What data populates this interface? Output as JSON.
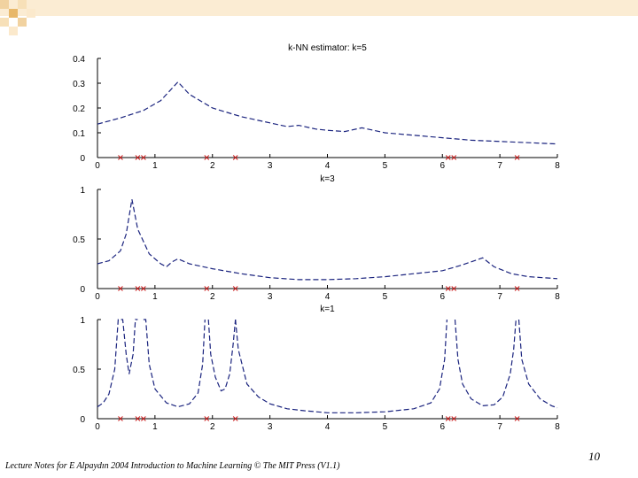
{
  "slide": {
    "footer": "Lecture Notes for E Alpaydın 2004 Introduction to Machine Learning © The MIT Press (V1.1)",
    "page_number": "10"
  },
  "colors": {
    "curve": "#1a237e",
    "marker": "#cc2020",
    "deco_light": "#f4d9a8",
    "deco_dark": "#e8b86a"
  },
  "chart_data": [
    {
      "type": "line",
      "title": "k-NN estimator: k=5",
      "xlim": [
        0,
        8
      ],
      "ylim": [
        0,
        0.4
      ],
      "xticks": [
        "0",
        "1",
        "2",
        "3",
        "4",
        "5",
        "6",
        "7",
        "8"
      ],
      "yticks": [
        "0",
        "0.1",
        "0.2",
        "0.3",
        "0.4"
      ],
      "line_style": "dashed",
      "series": [
        {
          "x": [
            0,
            0.4,
            0.8,
            1.1,
            1.4,
            1.6,
            2.0,
            2.5,
            3.0,
            3.3,
            3.5,
            3.8,
            4.0,
            4.3,
            4.6,
            5.0,
            5.5,
            6.0,
            6.5,
            7.0,
            7.5,
            8.0
          ],
          "y": [
            0.135,
            0.16,
            0.19,
            0.23,
            0.305,
            0.255,
            0.2,
            0.165,
            0.14,
            0.125,
            0.13,
            0.115,
            0.11,
            0.105,
            0.12,
            0.1,
            0.09,
            0.08,
            0.07,
            0.065,
            0.06,
            0.055
          ]
        }
      ],
      "markers": [
        0.4,
        0.7,
        0.8,
        1.9,
        2.4,
        6.1,
        6.2,
        7.3
      ]
    },
    {
      "type": "line",
      "title": "k=3",
      "xlim": [
        0,
        8
      ],
      "ylim": [
        0,
        1
      ],
      "xticks": [
        "0",
        "1",
        "2",
        "3",
        "4",
        "5",
        "6",
        "7",
        "8"
      ],
      "yticks": [
        "0",
        "0.5",
        "1"
      ],
      "line_style": "dashed",
      "series": [
        {
          "x": [
            0,
            0.2,
            0.4,
            0.5,
            0.6,
            0.7,
            0.9,
            1.1,
            1.2,
            1.3,
            1.4,
            1.6,
            2.0,
            2.5,
            3.0,
            3.5,
            4.0,
            4.5,
            5.0,
            5.5,
            6.0,
            6.3,
            6.5,
            6.7,
            6.9,
            7.2,
            7.5,
            8.0
          ],
          "y": [
            0.25,
            0.28,
            0.38,
            0.55,
            0.9,
            0.6,
            0.35,
            0.25,
            0.22,
            0.27,
            0.3,
            0.25,
            0.2,
            0.15,
            0.11,
            0.09,
            0.09,
            0.1,
            0.12,
            0.15,
            0.18,
            0.23,
            0.27,
            0.31,
            0.22,
            0.15,
            0.12,
            0.1
          ]
        }
      ],
      "markers": [
        0.4,
        0.7,
        0.8,
        1.9,
        2.4,
        6.1,
        6.2,
        7.3
      ]
    },
    {
      "type": "line",
      "title": "k=1",
      "xlim": [
        0,
        8
      ],
      "ylim": [
        0,
        1
      ],
      "xticks": [
        "0",
        "1",
        "2",
        "3",
        "4",
        "5",
        "6",
        "7",
        "8"
      ],
      "yticks": [
        "0",
        "0.5",
        "1"
      ],
      "line_style": "dashed",
      "series": [
        {
          "x": [
            0,
            0.1,
            0.2,
            0.3,
            0.36,
            0.44,
            0.5,
            0.55,
            0.62,
            0.66,
            0.7
          ],
          "y": [
            0.12,
            0.16,
            0.25,
            0.5,
            1.0,
            1.0,
            0.65,
            0.45,
            0.65,
            1.0,
            1.0
          ]
        },
        {
          "x": [
            0.8,
            0.84,
            0.9,
            1.0,
            1.2,
            1.4,
            1.6,
            1.75,
            1.83,
            1.87
          ],
          "y": [
            1.0,
            1.0,
            0.55,
            0.3,
            0.16,
            0.12,
            0.15,
            0.26,
            0.55,
            1.0
          ]
        },
        {
          "x": [
            1.93,
            1.97,
            2.05,
            2.15,
            2.22,
            2.3,
            2.36,
            2.4
          ],
          "y": [
            1.0,
            0.65,
            0.42,
            0.28,
            0.3,
            0.45,
            0.75,
            1.0
          ]
        },
        {
          "x": [
            2.4,
            2.45,
            2.6,
            2.8,
            3.0,
            3.3,
            3.6,
            4.0,
            4.5,
            5.0,
            5.5,
            5.8,
            5.95,
            6.04,
            6.08
          ],
          "y": [
            1.0,
            0.7,
            0.35,
            0.22,
            0.15,
            0.1,
            0.08,
            0.06,
            0.06,
            0.07,
            0.1,
            0.16,
            0.3,
            0.6,
            1.0
          ]
        },
        {
          "x": [
            6.22,
            6.27,
            6.35,
            6.5,
            6.7,
            6.9,
            7.05,
            7.18,
            7.24,
            7.28
          ],
          "y": [
            1.0,
            0.6,
            0.35,
            0.2,
            0.13,
            0.14,
            0.22,
            0.45,
            0.7,
            1.0
          ]
        },
        {
          "x": [
            7.33,
            7.38,
            7.5,
            7.7,
            7.9,
            8.0
          ],
          "y": [
            1.0,
            0.6,
            0.35,
            0.2,
            0.13,
            0.11
          ]
        }
      ],
      "markers": [
        0.4,
        0.7,
        0.8,
        1.9,
        2.4,
        6.1,
        6.2,
        7.3
      ]
    }
  ]
}
